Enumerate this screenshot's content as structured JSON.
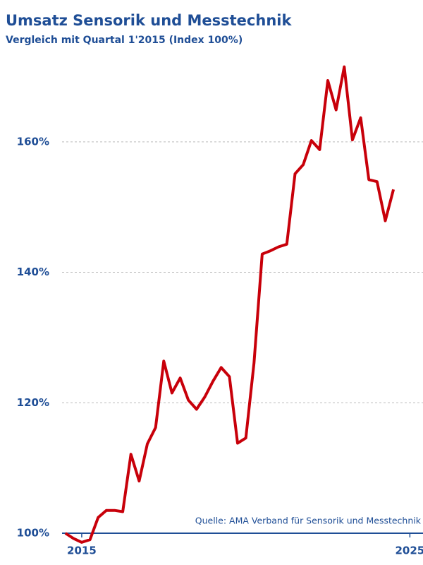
{
  "chart_data": {
    "type": "line",
    "title": "Umsatz Sensorik und Messtechnik",
    "subtitle": "Vergleich mit Quartal 1'2015 (Index 100%)",
    "source": "Quelle: AMA Verband für Sensorik und Messtechnik",
    "x": [
      2015,
      2015.25,
      2015.5,
      2015.75,
      2016,
      2016.25,
      2016.5,
      2016.75,
      2017,
      2017.25,
      2017.5,
      2017.75,
      2018,
      2018.25,
      2018.5,
      2018.75,
      2019,
      2019.25,
      2019.5,
      2019.75,
      2020,
      2020.25,
      2020.5,
      2020.75,
      2021,
      2021.25,
      2021.5,
      2021.75,
      2022,
      2022.25,
      2022.5,
      2022.75,
      2023,
      2023.25,
      2023.5,
      2023.75,
      2024,
      2024.25,
      2024.5,
      2024.75,
      2025
    ],
    "values": [
      100,
      99.2,
      98.6,
      99.0,
      102.4,
      103.5,
      103.5,
      103.3,
      112.1,
      108.0,
      113.7,
      116.2,
      126.4,
      121.5,
      123.8,
      120.4,
      119.0,
      120.9,
      123.3,
      125.4,
      124.0,
      113.8,
      114.6,
      126.1,
      142.8,
      143.3,
      143.9,
      144.3,
      155.1,
      156.5,
      160.2,
      158.8,
      169.4,
      164.9,
      171.5,
      160.3,
      163.7,
      154.2,
      153.9,
      147.9,
      152.7
    ],
    "color": "#c8000a",
    "xlim": [
      2014.9,
      2025.9
    ],
    "xticks": [
      {
        "value": 2015.5,
        "label": "2015"
      },
      {
        "value": 2025.5,
        "label": "2025"
      }
    ],
    "ylim": [
      100,
      172
    ],
    "yticks": [
      {
        "value": 100,
        "label": "100%"
      },
      {
        "value": 120,
        "label": "120%"
      },
      {
        "value": 140,
        "label": "140%"
      },
      {
        "value": 160,
        "label": "160%"
      }
    ],
    "grid": true
  }
}
